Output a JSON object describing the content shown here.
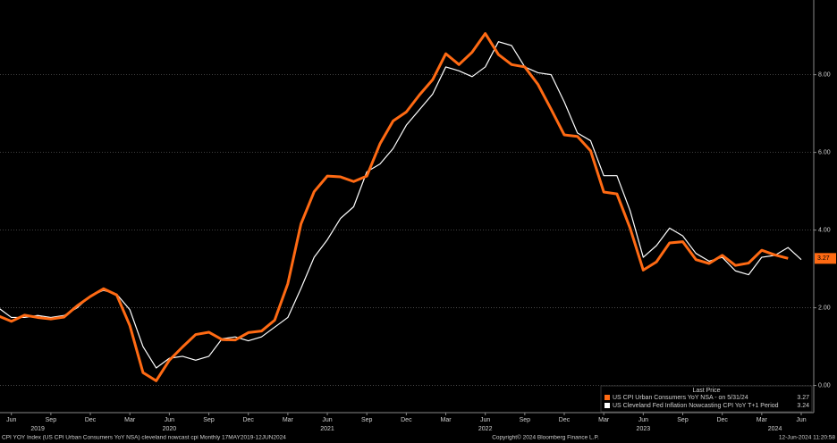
{
  "chart_data": {
    "type": "line",
    "x": [
      "2019-05",
      "2019-06",
      "2019-07",
      "2019-08",
      "2019-09",
      "2019-10",
      "2019-11",
      "2019-12",
      "2020-01",
      "2020-02",
      "2020-03",
      "2020-04",
      "2020-05",
      "2020-06",
      "2020-07",
      "2020-08",
      "2020-09",
      "2020-10",
      "2020-11",
      "2020-12",
      "2021-01",
      "2021-02",
      "2021-03",
      "2021-04",
      "2021-05",
      "2021-06",
      "2021-07",
      "2021-08",
      "2021-09",
      "2021-10",
      "2021-11",
      "2021-12",
      "2022-01",
      "2022-02",
      "2022-03",
      "2022-04",
      "2022-05",
      "2022-06",
      "2022-07",
      "2022-08",
      "2022-09",
      "2022-10",
      "2022-11",
      "2022-12",
      "2023-01",
      "2023-02",
      "2023-03",
      "2023-04",
      "2023-05",
      "2023-06",
      "2023-07",
      "2023-08",
      "2023-09",
      "2023-10",
      "2023-11",
      "2023-12",
      "2024-01",
      "2024-02",
      "2024-03",
      "2024-04",
      "2024-05",
      "2024-06"
    ],
    "series": [
      {
        "name": "US CPI Urban Consumers YoY NSA  -  on 5/31/24",
        "color": "#ff6a13",
        "width": 3,
        "values": [
          1.79,
          1.65,
          1.81,
          1.75,
          1.71,
          1.76,
          2.05,
          2.29,
          2.49,
          2.33,
          1.54,
          0.33,
          0.12,
          0.65,
          0.99,
          1.31,
          1.37,
          1.18,
          1.17,
          1.36,
          1.4,
          1.68,
          2.62,
          4.16,
          4.99,
          5.39,
          5.37,
          5.25,
          5.39,
          6.22,
          6.81,
          7.04,
          7.48,
          7.87,
          8.54,
          8.26,
          8.58,
          9.06,
          8.52,
          8.26,
          8.2,
          7.75,
          7.11,
          6.45,
          6.41,
          6.04,
          4.98,
          4.93,
          4.05,
          2.97,
          3.18,
          3.67,
          3.7,
          3.24,
          3.14,
          3.35,
          3.09,
          3.15,
          3.48,
          3.36,
          3.27,
          null
        ]
      },
      {
        "name": "US Cleveland Fed Inflation Nowcasting CPI YoY T+1 Period",
        "color": "#ffffff",
        "width": 1.2,
        "values": [
          2.0,
          1.75,
          1.75,
          1.8,
          1.75,
          1.8,
          2.0,
          2.3,
          2.45,
          2.35,
          1.95,
          1.0,
          0.45,
          0.7,
          0.75,
          0.65,
          0.75,
          1.2,
          1.25,
          1.15,
          1.25,
          1.5,
          1.75,
          2.5,
          3.3,
          3.75,
          4.3,
          4.6,
          5.5,
          5.7,
          6.1,
          6.7,
          7.1,
          7.5,
          8.2,
          8.1,
          7.95,
          8.2,
          8.85,
          8.75,
          8.2,
          8.05,
          8.0,
          7.3,
          6.5,
          6.3,
          5.4,
          5.4,
          4.5,
          3.3,
          3.6,
          4.05,
          3.85,
          3.4,
          3.2,
          3.3,
          2.95,
          2.85,
          3.3,
          3.35,
          3.55,
          3.24
        ]
      }
    ],
    "xlim": [
      "2019-05",
      "2024-06"
    ],
    "xticks": [
      {
        "value": "2019-06",
        "label": "Jun"
      },
      {
        "value": "2019-09",
        "label": "Sep"
      },
      {
        "value": "2019-12",
        "label": "Dec"
      },
      {
        "value": "2020-03",
        "label": "Mar"
      },
      {
        "value": "2020-06",
        "label": "Jun"
      },
      {
        "value": "2020-09",
        "label": "Sep"
      },
      {
        "value": "2020-12",
        "label": "Dec"
      },
      {
        "value": "2021-03",
        "label": "Mar"
      },
      {
        "value": "2021-06",
        "label": "Jun"
      },
      {
        "value": "2021-09",
        "label": "Sep"
      },
      {
        "value": "2021-12",
        "label": "Dec"
      },
      {
        "value": "2022-03",
        "label": "Mar"
      },
      {
        "value": "2022-06",
        "label": "Jun"
      },
      {
        "value": "2022-09",
        "label": "Sep"
      },
      {
        "value": "2022-12",
        "label": "Dec"
      },
      {
        "value": "2023-03",
        "label": "Mar"
      },
      {
        "value": "2023-06",
        "label": "Jun"
      },
      {
        "value": "2023-09",
        "label": "Sep"
      },
      {
        "value": "2023-12",
        "label": "Dec"
      },
      {
        "value": "2024-03",
        "label": "Mar"
      },
      {
        "value": "2024-06",
        "label": "Jun"
      }
    ],
    "xyears": [
      {
        "value": "2019-08",
        "label": "2019"
      },
      {
        "value": "2020-06",
        "label": "2020"
      },
      {
        "value": "2021-06",
        "label": "2021"
      },
      {
        "value": "2022-06",
        "label": "2022"
      },
      {
        "value": "2023-06",
        "label": "2023"
      },
      {
        "value": "2024-04",
        "label": "2024"
      }
    ],
    "ylim": [
      -0.7,
      9.9
    ],
    "yticks": [
      {
        "value": 0,
        "label": "0.00"
      },
      {
        "value": 2,
        "label": "2.00"
      },
      {
        "value": 4,
        "label": "4.00"
      },
      {
        "value": 6,
        "label": "6.00"
      },
      {
        "value": 8,
        "label": "8.00"
      }
    ],
    "grid": true,
    "legend_title": "Last Price",
    "legend": "bottom-right",
    "footer": {
      "left": "CPI YOY Index (US CPI Urban Consumers YoY NSA) cleveland nowcast cpi  Monthly 17MAY2019-12JUN2024",
      "center": "Copyright© 2024 Bloomberg Finance L.P.",
      "right": "12-Jun-2024 11:20:58"
    }
  }
}
